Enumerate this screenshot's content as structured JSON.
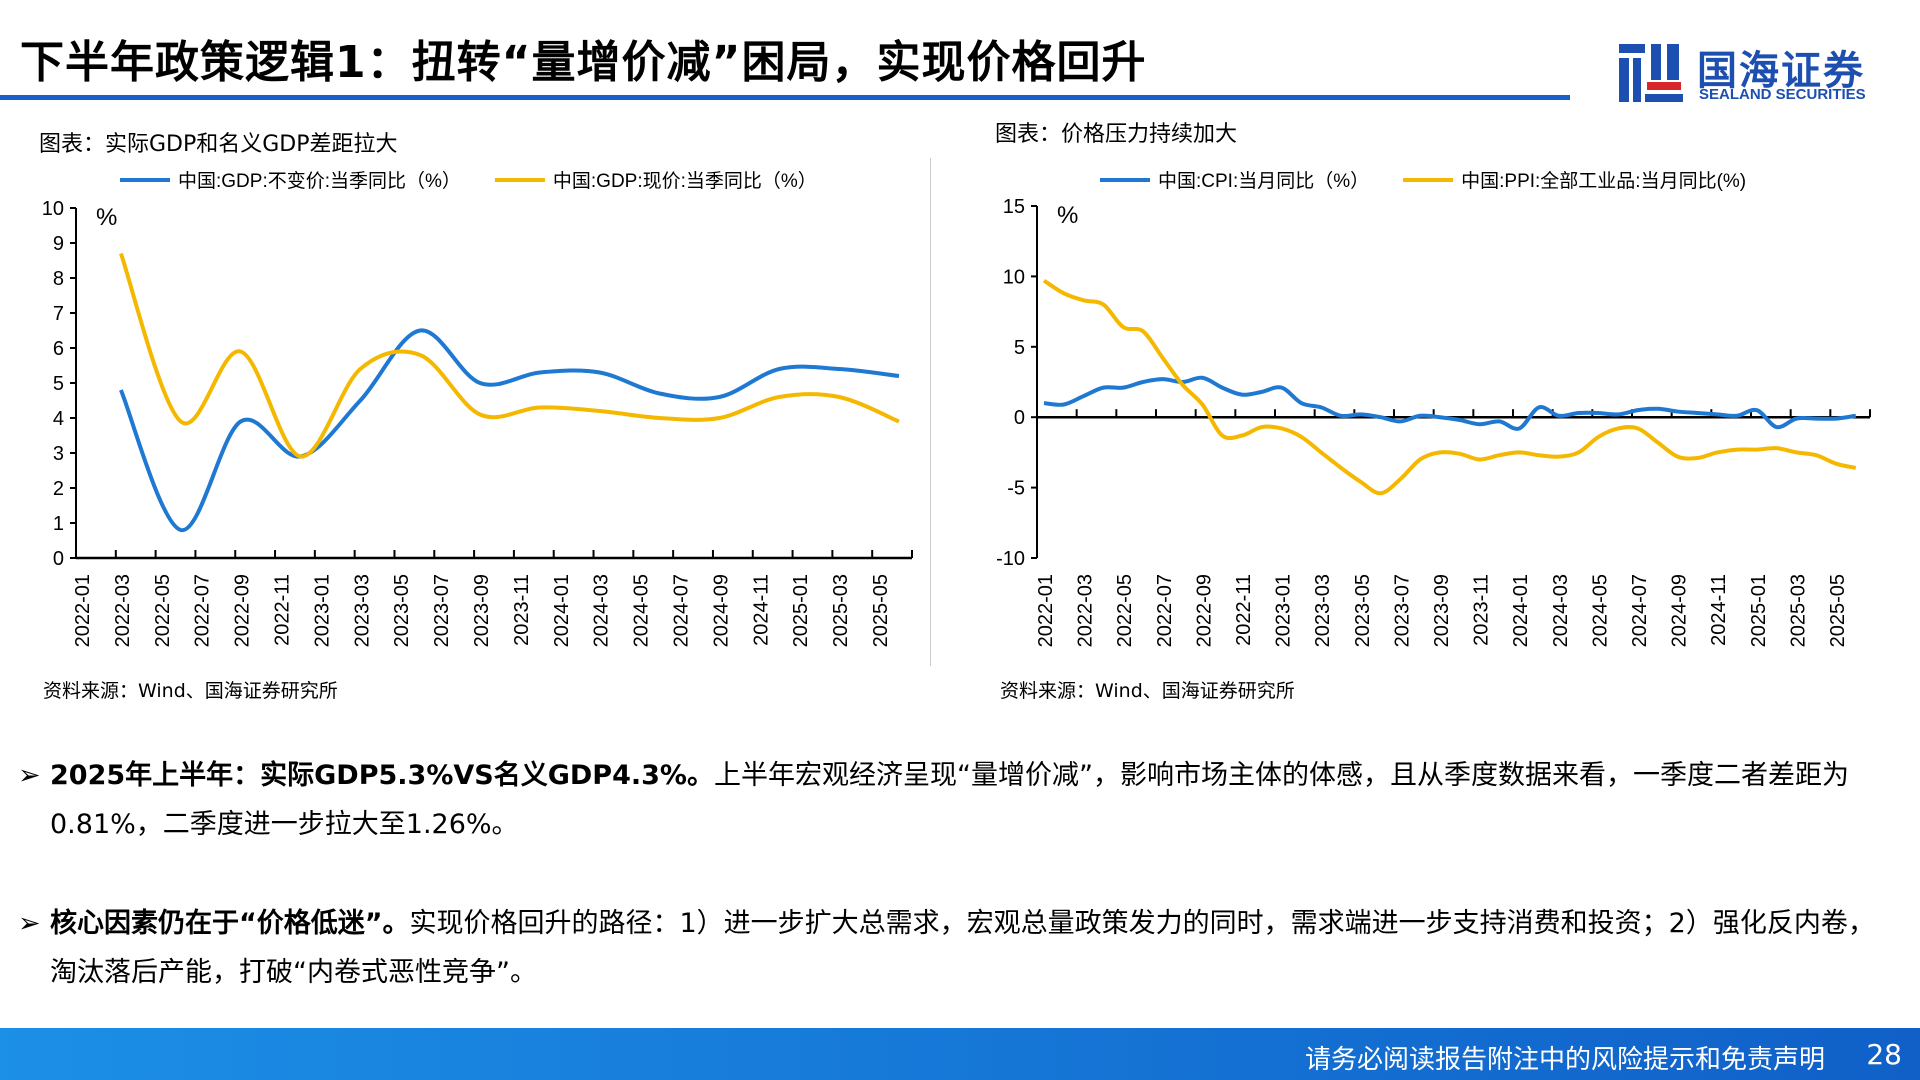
{
  "header": {
    "title": "下半年政策逻辑1：扭转“量增价减”困局，实现价格回升",
    "logo_cn": "国海证券",
    "logo_en": "SEALAND SECURITIES",
    "accent": "#1a5fc8"
  },
  "charts": {
    "left": {
      "caption": "图表：实际GDP和名义GDP差距拉大",
      "source": "资料来源：Wind、国海证券研究所"
    },
    "right": {
      "caption": "图表：价格压力持续加大",
      "source": "资料来源：Wind、国海证券研究所"
    }
  },
  "chart_data": [
    {
      "type": "line",
      "unit_label": "%",
      "ylim": [
        0,
        10
      ],
      "yticks": [
        0,
        1,
        2,
        3,
        4,
        5,
        6,
        7,
        8,
        9,
        10
      ],
      "xticks": [
        "2022-01",
        "2022-03",
        "2022-05",
        "2022-07",
        "2022-09",
        "2022-11",
        "2023-01",
        "2023-03",
        "2023-05",
        "2023-07",
        "2023-09",
        "2023-11",
        "2024-01",
        "2024-03",
        "2024-05",
        "2024-07",
        "2024-09",
        "2024-11",
        "2025-01",
        "2025-03",
        "2025-05"
      ],
      "x": [
        "2022-03",
        "2022-06",
        "2022-09",
        "2022-12",
        "2023-03",
        "2023-06",
        "2023-09",
        "2023-12",
        "2024-03",
        "2024-06",
        "2024-09",
        "2024-12",
        "2025-03",
        "2025-06"
      ],
      "legend": "top",
      "series": [
        {
          "name": "中国:GDP:不变价:当季同比（%）",
          "color": "#1f78d1",
          "values": [
            4.8,
            0.8,
            3.9,
            2.9,
            4.5,
            6.5,
            5.0,
            5.3,
            5.3,
            4.7,
            4.6,
            5.4,
            5.4,
            5.2
          ]
        },
        {
          "name": "中国:GDP:现价:当季同比（%）",
          "color": "#f5b800",
          "values": [
            8.7,
            3.9,
            5.9,
            2.9,
            5.4,
            5.8,
            4.1,
            4.3,
            4.2,
            4.0,
            4.0,
            4.6,
            4.6,
            3.9
          ]
        }
      ]
    },
    {
      "type": "line",
      "unit_label": "%",
      "ylim": [
        -10,
        15
      ],
      "yticks": [
        -10,
        -5,
        0,
        5,
        10,
        15
      ],
      "xticks": [
        "2022-01",
        "2022-03",
        "2022-05",
        "2022-07",
        "2022-09",
        "2022-11",
        "2023-01",
        "2023-03",
        "2023-05",
        "2023-07",
        "2023-09",
        "2023-11",
        "2024-01",
        "2024-03",
        "2024-05",
        "2024-07",
        "2024-09",
        "2024-11",
        "2025-01",
        "2025-03",
        "2025-05"
      ],
      "x_range": [
        "2022-01",
        "2025-06"
      ],
      "legend": "top",
      "series": [
        {
          "name": "中国:CPI:当月同比（%）",
          "color": "#1f78d1",
          "values": [
            1.0,
            0.9,
            1.5,
            2.1,
            2.1,
            2.5,
            2.7,
            2.5,
            2.8,
            2.1,
            1.6,
            1.8,
            2.1,
            1.0,
            0.7,
            0.1,
            0.2,
            0.0,
            -0.3,
            0.1,
            0.0,
            -0.2,
            -0.5,
            -0.3,
            -0.8,
            0.7,
            0.1,
            0.3,
            0.3,
            0.2,
            0.5,
            0.6,
            0.4,
            0.3,
            0.2,
            0.1,
            0.5,
            -0.7,
            -0.1,
            -0.1,
            -0.1,
            0.1
          ]
        },
        {
          "name": "中国:PPI:全部工业品:当月同比(%)",
          "color": "#f5b800",
          "values": [
            9.7,
            8.8,
            8.3,
            8.0,
            6.4,
            6.1,
            4.2,
            2.3,
            0.9,
            -1.3,
            -1.3,
            -0.7,
            -0.8,
            -1.4,
            -2.5,
            -3.6,
            -4.6,
            -5.4,
            -4.4,
            -3.0,
            -2.5,
            -2.6,
            -3.0,
            -2.7,
            -2.5,
            -2.7,
            -2.8,
            -2.5,
            -1.4,
            -0.8,
            -0.8,
            -1.8,
            -2.8,
            -2.9,
            -2.5,
            -2.3,
            -2.3,
            -2.2,
            -2.5,
            -2.7,
            -3.3,
            -3.6
          ]
        }
      ]
    }
  ],
  "bullets": [
    {
      "arrow": "➢",
      "bold": "2025年上半年：实际GDP5.3%VS名义GDP4.3%。",
      "text": "上半年宏观经济呈现“量增价减”，影响市场主体的体感，且从季度数据来看，一季度二者差距为0.81%，二季度进一步拉大至1.26%。"
    },
    {
      "arrow": "➢",
      "bold": "核心因素仍在于“价格低迷”。",
      "text": "实现价格回升的路径：1）进一步扩大总需求，宏观总量政策发力的同时，需求端进一步支持消费和投资；2）强化反内卷，淘汰落后产能，打破“内卷式恶性竞争”。"
    }
  ],
  "footer": {
    "disclaimer": "请务必阅读报告附注中的风险提示和免责声明",
    "page": "28"
  }
}
